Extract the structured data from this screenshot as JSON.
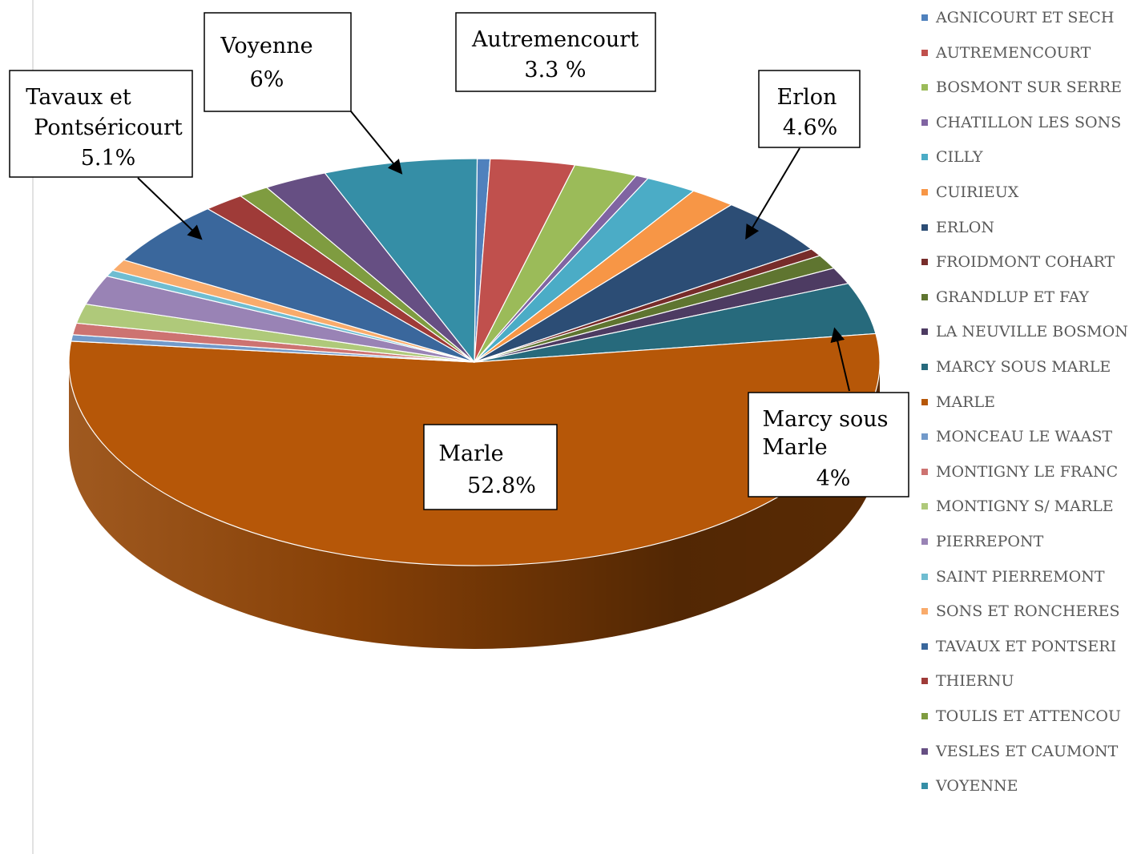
{
  "chart_data": {
    "type": "pie",
    "style": "3d",
    "legend_position": "right",
    "title": "",
    "categories": [
      "AGNICOURT ET SECH",
      "AUTREMENCOURT",
      "BOSMONT SUR SERRE",
      "CHATILLON LES SONS",
      "CILLY",
      "CUIRIEUX",
      "ERLON",
      "FROIDMONT COHART",
      "GRANDLUP ET FAY",
      "LA NEUVILLE BOSMON",
      "MARCY SOUS MARLE",
      "MARLE",
      "MONCEAU LE WAAST",
      "MONTIGNY LE FRANC",
      "MONTIGNY S/ MARLE",
      "PIERREPONT",
      "SAINT PIERREMONT",
      "SONS ET RONCHERES",
      "TAVAUX ET PONTSERI",
      "THIERNU",
      "TOULIS ET ATTENCOU",
      "VESLES ET CAUMONT",
      "VOYENNE"
    ],
    "values": [
      0.5,
      3.3,
      2.5,
      0.5,
      2.0,
      1.8,
      4.6,
      0.6,
      1.1,
      1.3,
      4.0,
      52.8,
      0.5,
      0.9,
      1.5,
      2.3,
      0.5,
      0.9,
      5.1,
      1.6,
      1.2,
      2.5,
      6.0
    ],
    "colors": [
      "#4f81bd",
      "#c0504d",
      "#9bbb59",
      "#8064a2",
      "#4bacc6",
      "#f79646",
      "#2c4d75",
      "#772c2a",
      "#5f7530",
      "#4d3b62",
      "#276a7c",
      "#b65708",
      "#729aca",
      "#cd7371",
      "#afc97a",
      "#9983b5",
      "#6fbdd1",
      "#f9ab6b",
      "#3a679c",
      "#9f3b38",
      "#7f9c40",
      "#664f83",
      "#358ea6"
    ],
    "annotations": [
      {
        "name": "voyenne",
        "lines": [
          "Voyenne",
          "6%"
        ]
      },
      {
        "name": "autremencourt",
        "lines": [
          "Autremencourt",
          "3.3 %"
        ]
      },
      {
        "name": "tavaux",
        "lines": [
          "Tavaux et",
          "Pontséricourt",
          "5.1%"
        ]
      },
      {
        "name": "erlon",
        "lines": [
          "Erlon",
          "4.6%"
        ]
      },
      {
        "name": "marcy",
        "lines": [
          "Marcy sous",
          "Marle",
          "4%"
        ]
      },
      {
        "name": "marle",
        "lines": [
          "Marle",
          "52.8%"
        ]
      }
    ]
  }
}
